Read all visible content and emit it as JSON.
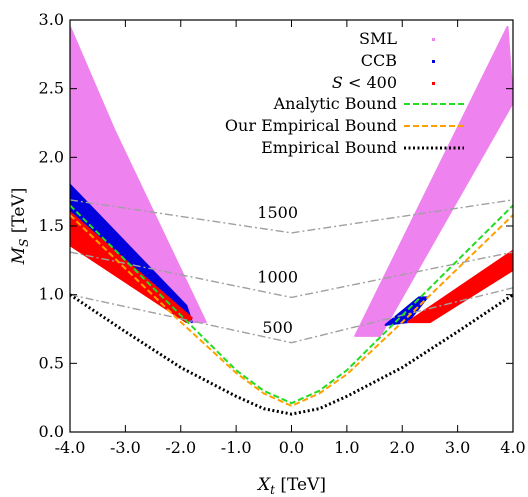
{
  "chart_data": {
    "type": "scatter",
    "xlabel": {
      "symbol": "X",
      "sub": "t",
      "unit": " [TeV]"
    },
    "ylabel": {
      "symbol": "M",
      "sub": "S",
      "unit": " [TeV]"
    },
    "xlim": [
      -4.0,
      4.0
    ],
    "ylim": [
      0.0,
      3.0
    ],
    "x_ticks": [
      -4.0,
      -3.0,
      -2.0,
      -1.0,
      0.0,
      1.0,
      2.0,
      3.0,
      4.0
    ],
    "x_tick_labels": [
      "-4.0",
      "-3.0",
      "-2.0",
      "-1.0",
      "0.0",
      "1.0",
      "2.0",
      "3.0",
      "4.0"
    ],
    "y_ticks": [
      0.0,
      0.5,
      1.0,
      1.5,
      2.0,
      2.5,
      3.0
    ],
    "y_tick_labels": [
      "0.0",
      "0.5",
      "1.0",
      "1.5",
      "2.0",
      "2.5",
      "3.0"
    ],
    "grid": false,
    "legend_position": "top-right",
    "colors": {
      "sml": "#ee82ee",
      "ccb": "#0000dd",
      "s400": "#ff0000",
      "analytic": "#22dd22",
      "our_empirical": "#ffa000",
      "empirical": "#000000",
      "contour": "#a0a0a0"
    },
    "scatter_regions": [
      {
        "name": "SML",
        "legend": "SML",
        "color": "#ee82ee",
        "polygons": [
          [
            [
              -4.0,
              2.95
            ],
            [
              -4.0,
              1.55
            ],
            [
              -1.8,
              0.8
            ],
            [
              -1.55,
              0.8
            ],
            [
              -3.2,
              2.2
            ]
          ],
          [
            [
              1.15,
              0.7
            ],
            [
              1.6,
              0.7
            ],
            [
              4.0,
              2.4
            ],
            [
              3.9,
              2.95
            ]
          ]
        ]
      },
      {
        "name": "CCB",
        "legend": "CCB",
        "color": "#0000dd",
        "polygons": [
          [
            [
              -4.0,
              1.8
            ],
            [
              -4.0,
              1.6
            ],
            [
              -1.8,
              0.8
            ],
            [
              -1.9,
              0.92
            ]
          ],
          [
            [
              1.7,
              0.78
            ],
            [
              2.3,
              0.98
            ],
            [
              2.45,
              0.98
            ],
            [
              2.1,
              0.8
            ]
          ]
        ]
      },
      {
        "name": "S400",
        "legend_prefix": "S",
        "legend_suffix": " < 400",
        "color": "#ff0000",
        "polygons": [
          [
            [
              -4.0,
              1.6
            ],
            [
              -4.0,
              1.36
            ],
            [
              -1.9,
              0.8
            ],
            [
              -1.8,
              0.83
            ]
          ],
          [
            [
              2.1,
              0.8
            ],
            [
              4.0,
              1.32
            ],
            [
              4.0,
              1.18
            ],
            [
              2.5,
              0.8
            ]
          ]
        ]
      }
    ],
    "lines": [
      {
        "name": "Analytic Bound",
        "color": "#22dd22",
        "dash": "6,3",
        "x": [
          -4.0,
          -3.0,
          -2.0,
          -1.0,
          -0.5,
          0.0,
          0.5,
          1.0,
          2.0,
          3.0,
          4.0
        ],
        "y": [
          1.65,
          1.25,
          0.85,
          0.45,
          0.3,
          0.21,
          0.3,
          0.45,
          0.85,
          1.25,
          1.65
        ]
      },
      {
        "name": "Our Empirical Bound",
        "color": "#ffa000",
        "dash": "6,3",
        "x": [
          -4.0,
          -3.0,
          -2.0,
          -1.0,
          -0.5,
          0.0,
          0.5,
          1.0,
          2.0,
          3.0,
          4.0
        ],
        "y": [
          1.58,
          1.19,
          0.8,
          0.43,
          0.28,
          0.19,
          0.28,
          0.42,
          0.8,
          1.19,
          1.58
        ]
      },
      {
        "name": "Empirical Bound",
        "color": "#000000",
        "dash": "2,2.5",
        "x": [
          -4.0,
          -3.0,
          -2.0,
          -1.0,
          -0.5,
          0.0,
          0.5,
          1.0,
          2.0,
          3.0,
          4.0
        ],
        "y": [
          1.0,
          0.73,
          0.47,
          0.26,
          0.17,
          0.13,
          0.17,
          0.26,
          0.47,
          0.73,
          1.0
        ]
      }
    ],
    "contours": [
      {
        "label": "1500",
        "label_x": -0.25,
        "label_y": 1.56,
        "x": [
          -4.0,
          0.0,
          4.0
        ],
        "y": [
          1.69,
          1.45,
          1.69
        ]
      },
      {
        "label": "1000",
        "label_x": -0.25,
        "label_y": 1.09,
        "x": [
          -4.0,
          0.0,
          4.0
        ],
        "y": [
          1.31,
          0.98,
          1.31
        ]
      },
      {
        "label": "500",
        "label_x": -0.25,
        "label_y": 0.72,
        "x": [
          -4.0,
          0.0,
          4.0
        ],
        "y": [
          1.0,
          0.65,
          1.05
        ]
      }
    ]
  }
}
